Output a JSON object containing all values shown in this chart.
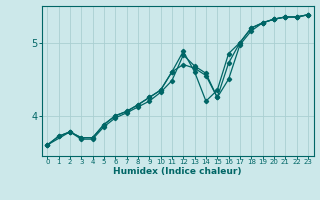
{
  "title": "",
  "xlabel": "Humidex (Indice chaleur)",
  "line_color": "#006666",
  "bg_color": "#cce8ea",
  "grid_color": "#aacfd2",
  "xlim": [
    -0.5,
    23.5
  ],
  "ylim": [
    3.45,
    5.5
  ],
  "yticks": [
    4,
    5
  ],
  "xticks": [
    0,
    1,
    2,
    3,
    4,
    5,
    6,
    7,
    8,
    9,
    10,
    11,
    12,
    13,
    14,
    15,
    16,
    17,
    18,
    19,
    20,
    21,
    22,
    23
  ],
  "series1_x": [
    0,
    1,
    2,
    3,
    4,
    5,
    6,
    7,
    8,
    9,
    10,
    11,
    12,
    13,
    14,
    15,
    16,
    17,
    18,
    19,
    20,
    21,
    22,
    23
  ],
  "series1_y": [
    3.6,
    3.72,
    3.78,
    3.7,
    3.7,
    3.88,
    4.0,
    4.06,
    4.15,
    4.25,
    4.35,
    4.6,
    4.7,
    4.65,
    4.55,
    4.25,
    4.72,
    5.0,
    5.2,
    5.27,
    5.32,
    5.35,
    5.35,
    5.38
  ],
  "series2_x": [
    0,
    2,
    3,
    4,
    5,
    6,
    7,
    8,
    9,
    10,
    11,
    12,
    13,
    14,
    15,
    16,
    17,
    18,
    19,
    20,
    21,
    22,
    23
  ],
  "series2_y": [
    3.6,
    3.78,
    3.68,
    3.68,
    3.85,
    3.97,
    4.04,
    4.12,
    4.2,
    4.32,
    4.48,
    4.83,
    4.68,
    4.58,
    4.25,
    4.5,
    4.97,
    5.16,
    5.27,
    5.32,
    5.35,
    5.35,
    5.38
  ],
  "series3_x": [
    0,
    1,
    2,
    3,
    4,
    5,
    6,
    7,
    8,
    9,
    10,
    11,
    12,
    13,
    14,
    15,
    16,
    17,
    18,
    19,
    20,
    21,
    22,
    23
  ],
  "series3_y": [
    3.6,
    3.72,
    3.78,
    3.7,
    3.7,
    3.88,
    4.0,
    4.06,
    4.15,
    4.25,
    4.35,
    4.6,
    4.88,
    4.6,
    4.2,
    4.35,
    4.85,
    5.0,
    5.2,
    5.27,
    5.32,
    5.35,
    5.35,
    5.38
  ]
}
